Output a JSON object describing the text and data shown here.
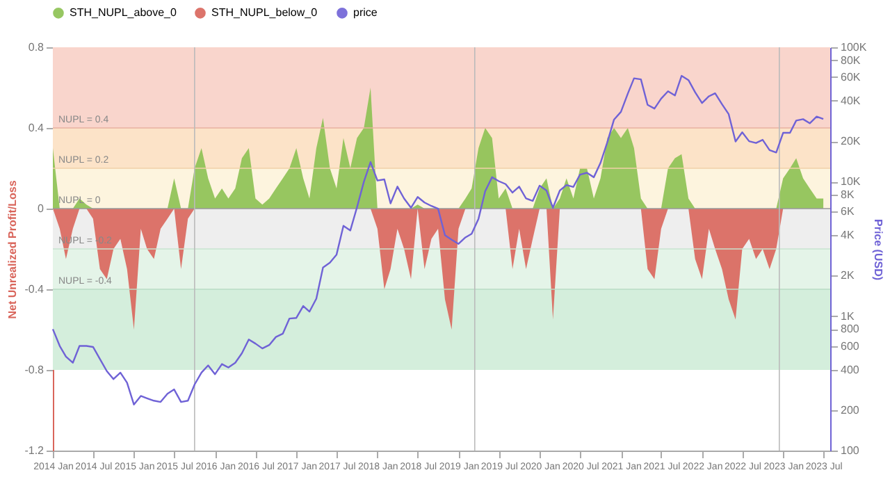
{
  "chart_data": {
    "type": "area",
    "xlabel": null,
    "ylabel": "Net Unrealized Profit/Loss",
    "y2label": "Price (USD)",
    "x": [
      "2014-01",
      "2014-02",
      "2014-03",
      "2014-04",
      "2014-05",
      "2014-06",
      "2014-07",
      "2014-08",
      "2014-09",
      "2014-10",
      "2014-11",
      "2014-12",
      "2015-01",
      "2015-02",
      "2015-03",
      "2015-04",
      "2015-05",
      "2015-06",
      "2015-07",
      "2015-08",
      "2015-09",
      "2015-10",
      "2015-11",
      "2015-12",
      "2016-01",
      "2016-02",
      "2016-03",
      "2016-04",
      "2016-05",
      "2016-06",
      "2016-07",
      "2016-08",
      "2016-09",
      "2016-10",
      "2016-11",
      "2016-12",
      "2017-01",
      "2017-02",
      "2017-03",
      "2017-04",
      "2017-05",
      "2017-06",
      "2017-07",
      "2017-08",
      "2017-09",
      "2017-10",
      "2017-11",
      "2017-12",
      "2018-01",
      "2018-02",
      "2018-03",
      "2018-04",
      "2018-05",
      "2018-06",
      "2018-07",
      "2018-08",
      "2018-09",
      "2018-10",
      "2018-11",
      "2018-12",
      "2019-01",
      "2019-02",
      "2019-03",
      "2019-04",
      "2019-05",
      "2019-06",
      "2019-07",
      "2019-08",
      "2019-09",
      "2019-10",
      "2019-11",
      "2019-12",
      "2020-01",
      "2020-02",
      "2020-03",
      "2020-04",
      "2020-05",
      "2020-06",
      "2020-07",
      "2020-08",
      "2020-09",
      "2020-10",
      "2020-11",
      "2020-12",
      "2021-01",
      "2021-02",
      "2021-03",
      "2021-04",
      "2021-05",
      "2021-06",
      "2021-07",
      "2021-08",
      "2021-09",
      "2021-10",
      "2021-11",
      "2021-12",
      "2022-01",
      "2022-02",
      "2022-03",
      "2022-04",
      "2022-05",
      "2022-06",
      "2022-07",
      "2022-08",
      "2022-09",
      "2022-10",
      "2022-11",
      "2022-12",
      "2023-01",
      "2023-02",
      "2023-03",
      "2023-04",
      "2023-05",
      "2023-06",
      "2023-07"
    ],
    "series": [
      {
        "name": "STH_NUPL_above_0",
        "color": "#8cc152",
        "values": [
          0.3,
          0,
          0,
          0,
          0.05,
          0.02,
          0,
          0,
          0,
          0,
          0,
          0,
          0,
          0,
          0,
          0,
          0,
          0,
          0.15,
          0,
          0,
          0.2,
          0.3,
          0.15,
          0.05,
          0.1,
          0.05,
          0.1,
          0.25,
          0.3,
          0.05,
          0.02,
          0.05,
          0.1,
          0.15,
          0.2,
          0.3,
          0.15,
          0.05,
          0.3,
          0.45,
          0.2,
          0.1,
          0.35,
          0.2,
          0.35,
          0.4,
          0.6,
          0,
          0,
          0,
          0,
          0,
          0,
          0.02,
          0,
          0,
          0,
          0,
          0,
          0,
          0.05,
          0.1,
          0.3,
          0.4,
          0.35,
          0.05,
          0.1,
          0,
          0,
          0,
          0,
          0.1,
          0.15,
          0,
          0.05,
          0.15,
          0.05,
          0.2,
          0.2,
          0.05,
          0.15,
          0.35,
          0.4,
          0.35,
          0.4,
          0.3,
          0.05,
          0,
          0,
          0,
          0.2,
          0.25,
          0.27,
          0.05,
          0,
          0,
          0,
          0,
          0,
          0,
          0,
          0,
          0,
          0,
          0,
          0,
          0,
          0.15,
          0.2,
          0.25,
          0.15,
          0.1,
          0.05,
          0.05
        ]
      },
      {
        "name": "STH_NUPL_below_0",
        "color": "#d9655b",
        "values": [
          0,
          -0.1,
          -0.25,
          -0.1,
          0,
          0,
          -0.05,
          -0.3,
          -0.35,
          -0.2,
          -0.15,
          -0.3,
          -0.6,
          -0.1,
          -0.2,
          -0.25,
          -0.1,
          -0.05,
          0,
          -0.3,
          -0.05,
          0,
          0,
          0,
          0,
          0,
          0,
          0,
          0,
          0,
          0,
          0,
          0,
          0,
          0,
          0,
          0,
          0,
          0,
          0,
          0,
          0,
          0,
          0,
          0,
          0,
          0,
          0,
          -0.1,
          -0.4,
          -0.3,
          -0.1,
          -0.2,
          -0.35,
          0,
          -0.3,
          -0.15,
          -0.1,
          -0.45,
          -0.6,
          -0.1,
          0,
          0,
          0,
          0,
          0,
          0,
          0,
          -0.3,
          -0.1,
          -0.3,
          -0.15,
          0,
          0,
          -0.55,
          0,
          0,
          0,
          0,
          0,
          0,
          0,
          0,
          0,
          0,
          0,
          0,
          0,
          -0.3,
          -0.35,
          -0.1,
          0,
          0,
          0,
          0,
          -0.25,
          -0.35,
          -0.1,
          -0.2,
          -0.3,
          -0.45,
          -0.55,
          -0.2,
          -0.15,
          -0.25,
          -0.2,
          -0.3,
          -0.2,
          0,
          0,
          0,
          0,
          0,
          0,
          0
        ]
      },
      {
        "name": "price",
        "type": "line",
        "axis": "y2",
        "color": "#6f62d6",
        "values": [
          800,
          600,
          500,
          450,
          600,
          600,
          590,
          480,
          390,
          340,
          380,
          320,
          220,
          255,
          245,
          235,
          230,
          265,
          285,
          230,
          235,
          310,
          380,
          430,
          370,
          440,
          415,
          450,
          530,
          670,
          625,
          575,
          610,
          700,
          740,
          960,
          970,
          1190,
          1080,
          1350,
          2300,
          2500,
          2870,
          4700,
          4340,
          6450,
          10000,
          14000,
          10200,
          10400,
          6900,
          9200,
          7500,
          6400,
          7700,
          7000,
          6600,
          6300,
          4000,
          3700,
          3450,
          3850,
          4100,
          5300,
          8500,
          10800,
          10100,
          9600,
          8300,
          9200,
          7500,
          7200,
          9350,
          8600,
          6400,
          8600,
          9450,
          9150,
          11300,
          11650,
          10800,
          13800,
          19700,
          29000,
          33100,
          45200,
          58800,
          57700,
          37300,
          35000,
          41500,
          47100,
          43800,
          61300,
          57000,
          46300,
          38500,
          43200,
          45500,
          37700,
          31800,
          19900,
          23300,
          20000,
          19400,
          20500,
          17200,
          16500,
          23100,
          23100,
          28500,
          29200,
          27200,
          30500,
          29300
        ]
      }
    ],
    "xlim": [
      "2014-01-01",
      "2023-08-01"
    ],
    "xticks": [
      {
        "value": "2014-01-01",
        "label": "2014 Jan"
      },
      {
        "value": "2014-07-01",
        "label": "2014 Jul"
      },
      {
        "value": "2015-01-01",
        "label": "2015 Jan"
      },
      {
        "value": "2015-07-01",
        "label": "2015 Jul"
      },
      {
        "value": "2016-01-01",
        "label": "2016 Jan"
      },
      {
        "value": "2016-07-01",
        "label": "2016 Jul"
      },
      {
        "value": "2017-01-01",
        "label": "2017 Jan"
      },
      {
        "value": "2017-07-01",
        "label": "2017 Jul"
      },
      {
        "value": "2018-01-01",
        "label": "2018 Jan"
      },
      {
        "value": "2018-07-01",
        "label": "2018 Jul"
      },
      {
        "value": "2019-01-01",
        "label": "2019 Jan"
      },
      {
        "value": "2019-07-01",
        "label": "2019 Jul"
      },
      {
        "value": "2020-01-01",
        "label": "2020 Jan"
      },
      {
        "value": "2020-07-01",
        "label": "2020 Jul"
      },
      {
        "value": "2021-01-01",
        "label": "2021 Jan"
      },
      {
        "value": "2021-07-01",
        "label": "2021 Jul"
      },
      {
        "value": "2022-01-01",
        "label": "2022 Jan"
      },
      {
        "value": "2022-07-01",
        "label": "2022 Jul"
      },
      {
        "value": "2023-01-01",
        "label": "2023 Jan"
      },
      {
        "value": "2023-07-01",
        "label": "2023 Jul"
      }
    ],
    "ylim": [
      -1.2,
      0.8
    ],
    "yticks": [
      -1.2,
      -0.8,
      -0.4,
      0,
      0.4,
      0.8
    ],
    "log": "y2",
    "y2lim": [
      100,
      100000
    ],
    "y2ticks": [
      {
        "value": 100,
        "label": "100"
      },
      {
        "value": 200,
        "label": "200"
      },
      {
        "value": 400,
        "label": "400"
      },
      {
        "value": 600,
        "label": "600"
      },
      {
        "value": 800,
        "label": "800"
      },
      {
        "value": 1000,
        "label": "1K"
      },
      {
        "value": 2000,
        "label": "2K"
      },
      {
        "value": 4000,
        "label": "4K"
      },
      {
        "value": 6000,
        "label": "6K"
      },
      {
        "value": 8000,
        "label": "8K"
      },
      {
        "value": 10000,
        "label": "10K"
      },
      {
        "value": 20000,
        "label": "20K"
      },
      {
        "value": 40000,
        "label": "40K"
      },
      {
        "value": 60000,
        "label": "60K"
      },
      {
        "value": 80000,
        "label": "80K"
      },
      {
        "value": 100000,
        "label": "100K"
      }
    ],
    "bands": [
      {
        "axis": "y",
        "from": 0.4,
        "to": 0.8,
        "color": "#f9d5cc"
      },
      {
        "axis": "y",
        "from": 0.2,
        "to": 0.4,
        "color": "#fce3c8"
      },
      {
        "axis": "y",
        "from": 0,
        "to": 0.2,
        "color": "#fdf4de"
      },
      {
        "axis": "y",
        "from": -0.2,
        "to": 0,
        "color": "#eeeeee"
      },
      {
        "axis": "y",
        "from": -0.4,
        "to": -0.2,
        "color": "#e4f4e8"
      },
      {
        "axis": "y",
        "from": -0.8,
        "to": -0.4,
        "color": "#d4eedc"
      }
    ],
    "ref_lines": [
      {
        "axis": "y",
        "value": 0.4,
        "label": "NUPL = 0.4",
        "color": "#e8b0a0"
      },
      {
        "axis": "y",
        "value": 0.2,
        "label": "NUPL = 0.2",
        "color": "#f0d0a8"
      },
      {
        "axis": "y",
        "value": 0,
        "label": "NUPL = 0",
        "color": "#999999"
      },
      {
        "axis": "y",
        "value": -0.2,
        "label": "NUPL = -0.2",
        "color": "#c8e4d0"
      },
      {
        "axis": "y",
        "value": -0.4,
        "label": "NUPL = -0.4",
        "color": "#b8dcc4"
      },
      {
        "axis": "x",
        "value": "2015-10-01",
        "label": null,
        "color": "#bbbbbb"
      },
      {
        "axis": "x",
        "value": "2019-03-15",
        "label": null,
        "color": "#bbbbbb"
      },
      {
        "axis": "x",
        "value": "2022-12-15",
        "label": null,
        "color": "#bbbbbb"
      }
    ],
    "grid": false,
    "legend": "top"
  }
}
